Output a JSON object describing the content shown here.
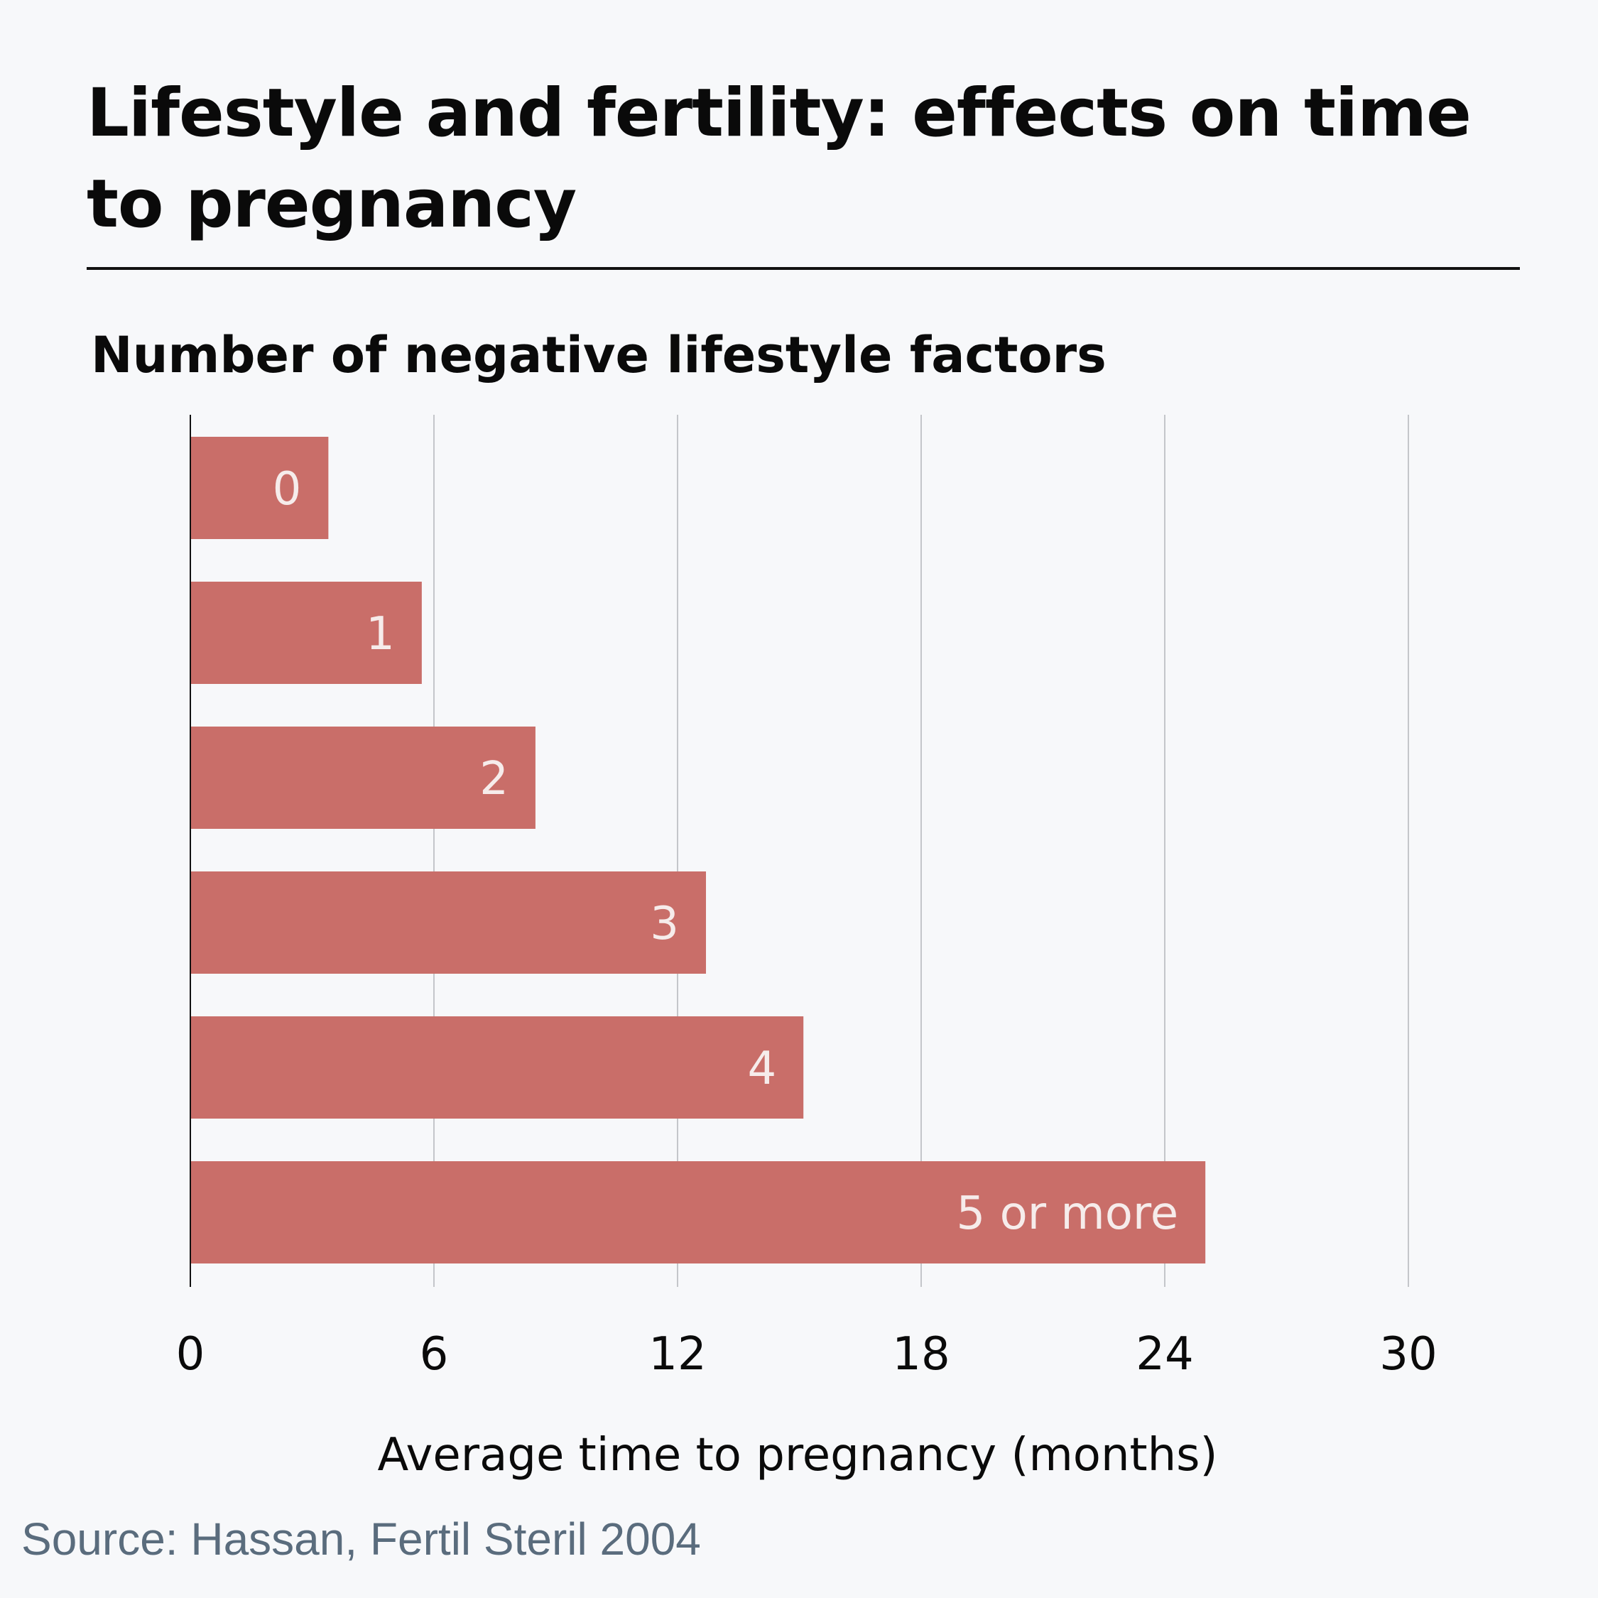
{
  "chart_data": {
    "type": "bar",
    "orientation": "horizontal",
    "title": "Lifestyle and fertility: effects on time to pregnancy",
    "category_axis_title": "Number of negative lifestyle factors",
    "xlabel": "Average time to pregnancy (months)",
    "categories": [
      "0",
      "1",
      "2",
      "3",
      "4",
      "5 or more"
    ],
    "values": [
      3.4,
      5.7,
      8.5,
      12.7,
      15.1,
      25.0
    ],
    "xlim": [
      0,
      30
    ],
    "ticks": [
      "0",
      "6",
      "12",
      "18",
      "24",
      "30"
    ],
    "tick_values": [
      0,
      6,
      12,
      18,
      24,
      30
    ],
    "grid": true,
    "bar_color": "#c96e69",
    "bar_label_color": "#f6eceb"
  },
  "source": "Source: Hassan, Fertil Steril 2004"
}
